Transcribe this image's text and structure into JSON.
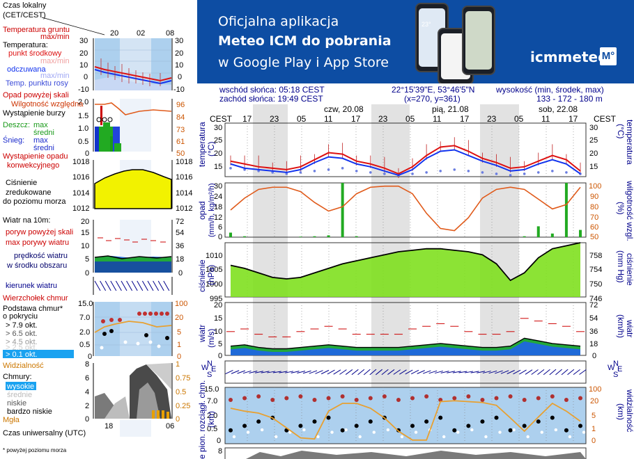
{
  "banner": {
    "line1": "Oficjalna aplikacja",
    "line2": "Meteo ICM do pobrania",
    "line3": "w Google Play i App Store",
    "brand": "icmmeteo",
    "brand_box": "M°",
    "phone_temp": "23°"
  },
  "info": {
    "sunrise": "wschód słońca: 05:18 CEST",
    "sunset": "zachód słońca: 19:49 CEST",
    "coords": "22°15'39\"E, 53°46'5\"N",
    "grid": "(x=270,  y=361)",
    "elev_label": "wysokość (min, środek, max)",
    "elev_values": "133 - 172 - 180 m"
  },
  "legend": {
    "time_local": "Czas lokalny",
    "time_local2": "(CET/CEST)",
    "time_ticks_top": [
      "20",
      "02",
      "08"
    ],
    "soil_temp": "Temperatura gruntu",
    "soil_maxmin": "max/min",
    "temperature": "Temperatura:",
    "mid_point": "punkt środkowy",
    "max_min": "max/min",
    "felt": "odczuwana",
    "felt_maxmin": "max/min",
    "dew": "Temp. punktu rosy",
    "temp_ticks": [
      "30",
      "20",
      "10",
      "0",
      "-10"
    ],
    "precip_over": "Opad powyżej skali",
    "humidity": "Wilgotność względna",
    "storm": "Wystąpienie burzy",
    "rain": "Deszcz:",
    "rain_max": "max",
    "rain_avg": "średni",
    "snow": "Śnieg:",
    "snow_max": "max",
    "snow_avg": "średni",
    "precip_occ1": "Wystąpienie opadu",
    "precip_occ2": "konwekcyjnego",
    "precip_ticks_left": [
      "2.0",
      "1.5",
      "1.0",
      "0.5",
      "0"
    ],
    "precip_ticks_right": [
      "96",
      "84",
      "73",
      "61",
      "50"
    ],
    "pressure1": "Ciśnienie",
    "pressure2": "zredukowane",
    "pressure3": "do poziomu morza",
    "pressure_ticks": [
      "1018",
      "1016",
      "1014",
      "1012"
    ],
    "wind10": "Wiatr na 10m:",
    "gust_over": "poryw powyżej skali",
    "gust_max": "max porywy wiatru",
    "wind_speed1": "prędkość wiatru",
    "wind_speed2": "w środku obszaru",
    "wind_ticks_left": [
      "20",
      "15",
      "10",
      "5",
      "0"
    ],
    "wind_ticks_right": [
      "72",
      "54",
      "36",
      "18",
      "0"
    ],
    "wind_dir": "kierunek wiatru",
    "cloud_top": "Wierzchołek chmur",
    "cloud_base1": "Podstawa chmur*",
    "cloud_base2": "o pokryciu",
    "okt79": "> 7.9 okt.",
    "okt65": "> 6.5 okt.",
    "okt45": "> 4.5 okt.",
    "okt25": "> 2.5 okt.",
    "okt01": "> 0.1 okt.",
    "base_ticks_left": [
      "15.0",
      "7.0",
      "2.0",
      "0.5",
      "0"
    ],
    "base_ticks_right": [
      "100",
      "20",
      "5",
      "1",
      "0"
    ],
    "visibility": "Widzialność",
    "clouds": "Chmury:",
    "high": "wysokie",
    "mid": "średnie",
    "low": "niskie",
    "vlow": "bardzo niskie",
    "fog": "Mgła",
    "cloud_ticks_left": [
      "8",
      "6",
      "4",
      "2",
      "0"
    ],
    "cloud_ticks_right": [
      "1",
      "0.75",
      "0.5",
      "0.25",
      "0"
    ],
    "utc": "Czas uniwersalny (UTC)",
    "utc_ticks": [
      "18",
      "00",
      "06"
    ],
    "footnote": "* powyżej poziomu morza"
  },
  "main": {
    "days": [
      "czw, 20.08",
      "pią, 21.08",
      "sob, 22.08"
    ],
    "cest": "CEST",
    "hours": [
      "17",
      "23",
      "05",
      "11",
      "17",
      "23",
      "05",
      "11",
      "17",
      "23",
      "05",
      "11",
      "17"
    ],
    "temp_label": "temperatura",
    "temp_unit": "(°C)",
    "precip_label": "opad",
    "precip_unit": "(mm/h, kg/m²/h)",
    "humidity_label": "wilgotność wzgl.",
    "humidity_unit": "(%)",
    "pressure_label": "ciśnienie",
    "pressure_unit": "(hPa)",
    "pressure_unit_r": "(mm Hg)",
    "wind_label": "wiatr",
    "wind_unit": "(m/s)",
    "wind_unit_r": "(km/h)",
    "cloud_label": "podst. chm.",
    "cloud_unit": "(km)",
    "vis_label": "widzialność",
    "vis_unit": "(km)",
    "left_cut_label": "e pion. rozciągł. chm.",
    "temp_ticks": [
      "30",
      "25",
      "20",
      "15"
    ],
    "precip_ticks": [
      "30",
      "24",
      "18",
      "12",
      "6",
      "0"
    ],
    "hum_ticks": [
      "100",
      "90",
      "80",
      "70",
      "60",
      "50"
    ],
    "press_ticks": [
      "1010",
      "1005",
      "1000",
      "995"
    ],
    "press_ticks_r": [
      "758",
      "754",
      "750",
      "746"
    ],
    "wind_ticks": [
      "20",
      "15",
      "10",
      "5",
      "0"
    ],
    "wind_ticks_r": [
      "72",
      "54",
      "36",
      "18",
      "0"
    ],
    "base_ticks": [
      "15.0",
      "7.0",
      "2.0",
      "0.5",
      "0"
    ],
    "vis_ticks": [
      "100",
      "20",
      "5",
      "1",
      "0"
    ],
    "bottom_tick": "8"
  },
  "colors": {
    "banner": "#0d4da3",
    "temp": "#dd1111",
    "felt": "#1133ee",
    "dew": "#6a7de0",
    "humidity": "#e05a1a",
    "rain": "#22aa22",
    "pressure_fill": "#7fe01f",
    "pressure_legend": "#f2f200",
    "wind_low": "#1f6ad8",
    "wind_mid": "#22a83a",
    "panel_bg": "#add0ee",
    "night": "#d8d8d8"
  },
  "chart_data": [
    {
      "type": "line",
      "title": "temperatura",
      "x_hours_cest": [
        17,
        20,
        23,
        2,
        5,
        8,
        11,
        14,
        17,
        20,
        23,
        2,
        5,
        8,
        11,
        14,
        17,
        20,
        23,
        2,
        5,
        8,
        11,
        14,
        17,
        20
      ],
      "series": [
        {
          "name": "temperatura",
          "values": [
            17.5,
            16.5,
            15.5,
            15.0,
            14.5,
            15.5,
            18.0,
            20.5,
            20.0,
            17.5,
            16.5,
            15.0,
            13.0,
            15.5,
            19.5,
            22.5,
            23.0,
            21.0,
            18.5,
            17.0,
            15.0,
            15.5,
            17.5,
            19.5,
            18.0,
            14.0
          ]
        },
        {
          "name": "odczuwana",
          "values": [
            16.5,
            15.0,
            14.5,
            14.0,
            13.5,
            14.5,
            17.0,
            19.0,
            18.5,
            16.5,
            15.5,
            14.0,
            12.5,
            14.5,
            18.5,
            21.0,
            21.5,
            19.5,
            17.5,
            16.0,
            14.0,
            14.5,
            16.5,
            18.0,
            16.5,
            13.0
          ]
        },
        {
          "name": "punkt rosy",
          "values": [
            15.0,
            14.5,
            14.0,
            13.5,
            13.0,
            13.5,
            14.0,
            14.5,
            15.0,
            14.0,
            13.5,
            13.0,
            12.5,
            13.0,
            13.5,
            14.0,
            14.5,
            14.0,
            13.5,
            13.0,
            12.5,
            13.0,
            13.5,
            14.0,
            13.5,
            13.0
          ]
        }
      ],
      "ylim": [
        12,
        31
      ],
      "ylabel": "(°C)"
    },
    {
      "type": "line",
      "title": "wilgotność wzgl.",
      "x_hours_cest": [
        17,
        20,
        23,
        2,
        5,
        8,
        11,
        14,
        17,
        20,
        23,
        2,
        5,
        8,
        11,
        14,
        17,
        20,
        23,
        2,
        5,
        8,
        11,
        14,
        17,
        20
      ],
      "series": [
        {
          "name": "wilgotność",
          "values": [
            75,
            86,
            94,
            96,
            96,
            92,
            82,
            74,
            78,
            90,
            96,
            97,
            97,
            90,
            72,
            58,
            56,
            68,
            86,
            94,
            96,
            94,
            85,
            76,
            80,
            96
          ]
        }
      ],
      "ylim": [
        50,
        100
      ],
      "ylabel": "(%)"
    },
    {
      "type": "area",
      "title": "ciśnienie",
      "x_hours_cest": [
        17,
        20,
        23,
        2,
        5,
        8,
        11,
        14,
        17,
        20,
        23,
        2,
        5,
        8,
        11,
        14,
        17,
        20,
        23,
        2,
        5,
        8,
        11,
        14,
        17,
        20
      ],
      "values": [
        1005.5,
        1004.5,
        1003.0,
        1001.5,
        1001.0,
        1001.5,
        1003.0,
        1004.5,
        1006.0,
        1007.0,
        1008.0,
        1009.0,
        1010.0,
        1010.5,
        1011.0,
        1011.0,
        1010.5,
        1010.0,
        1009.0,
        1006.0,
        1000.5,
        1003.0,
        1008.0,
        1011.0,
        1012.0,
        1013.0
      ],
      "ylim": [
        995,
        1013
      ],
      "ylabel": "(hPa)"
    },
    {
      "type": "bar",
      "title": "opad",
      "x_hours_cest": [
        17,
        20,
        23,
        2,
        5,
        8,
        11,
        14,
        17,
        20,
        23,
        2,
        5,
        8,
        11,
        14,
        17,
        20,
        23,
        2,
        5,
        8,
        11,
        14,
        17,
        20
      ],
      "values": [
        2.5,
        0.5,
        0,
        0,
        0,
        0.3,
        0.5,
        1.0,
        30,
        0.5,
        0,
        0,
        0,
        0,
        0,
        0,
        0,
        0,
        0,
        0,
        0,
        0.5,
        6,
        2,
        30,
        4
      ],
      "ylim": [
        0,
        30
      ],
      "ylabel": "(mm/h, kg/m²/h)"
    },
    {
      "type": "area",
      "title": "wiatr",
      "x_hours_cest": [
        17,
        20,
        23,
        2,
        5,
        8,
        11,
        14,
        17,
        20,
        23,
        2,
        5,
        8,
        11,
        14,
        17,
        20,
        23,
        2,
        5,
        8,
        11,
        14,
        17,
        20
      ],
      "series": [
        {
          "name": "prędkość",
          "values": [
            3.5,
            4.0,
            3.0,
            2.5,
            2.5,
            3.0,
            3.5,
            4.0,
            3.5,
            3.0,
            3.0,
            3.0,
            3.0,
            3.5,
            4.0,
            4.5,
            4.0,
            3.5,
            3.0,
            3.0,
            3.5,
            6.5,
            5.5,
            4.5,
            4.0,
            3.5
          ]
        },
        {
          "name": "porywy",
          "values": [
            9,
            10,
            8,
            7,
            7,
            9,
            10,
            11,
            10,
            8,
            8,
            8,
            8,
            10,
            11,
            12,
            11,
            9,
            8,
            8,
            9,
            14,
            13,
            12,
            11,
            9
          ]
        }
      ],
      "ylim": [
        0,
        20
      ],
      "ylabel": "(m/s)"
    },
    {
      "type": "line",
      "title": "widzialność",
      "x_hours_cest": [
        17,
        20,
        23,
        2,
        5,
        8,
        11,
        14,
        17,
        20,
        23,
        2,
        5,
        8,
        11,
        14,
        17,
        20,
        23,
        2,
        5,
        8,
        11,
        14,
        17,
        20
      ],
      "values": [
        15,
        12,
        10,
        5,
        2,
        0.4,
        0.3,
        12,
        20,
        20,
        15,
        5,
        1,
        0.2,
        0.2,
        30,
        35,
        30,
        25,
        18,
        5,
        1,
        6,
        20,
        12,
        4
      ],
      "ylim": [
        0,
        100
      ],
      "ylabel": "(km)"
    }
  ]
}
